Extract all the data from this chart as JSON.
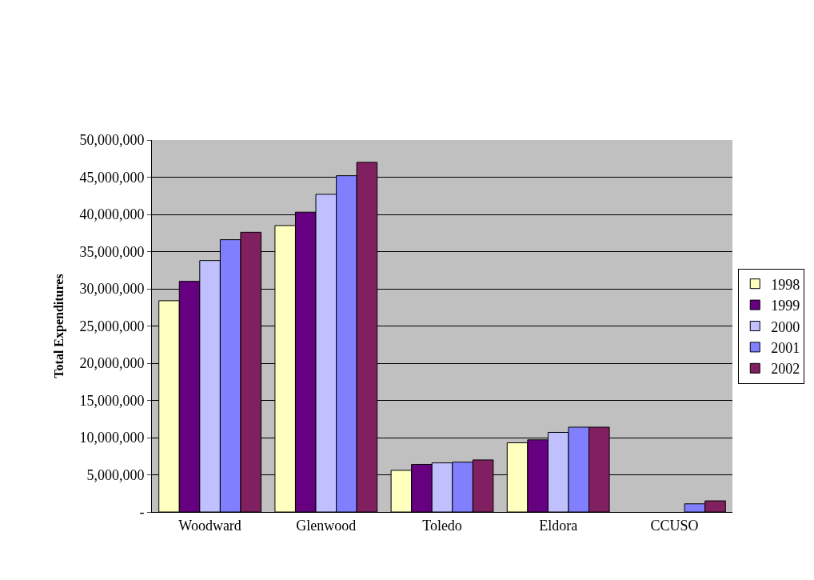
{
  "chart_data": {
    "type": "bar",
    "ylabel": "Total Expenditures",
    "categories": [
      "Woodward",
      "Glenwood",
      "Toledo",
      "Eldora",
      "CCUSO"
    ],
    "series": [
      {
        "name": "1998",
        "color": "#ffffc0",
        "values": [
          28400000,
          38500000,
          5600000,
          9300000,
          null
        ]
      },
      {
        "name": "1999",
        "color": "#660080",
        "values": [
          31000000,
          40300000,
          6400000,
          9700000,
          null
        ]
      },
      {
        "name": "2000",
        "color": "#c0c0ff",
        "values": [
          33800000,
          42700000,
          6600000,
          10700000,
          null
        ]
      },
      {
        "name": "2001",
        "color": "#8080ff",
        "values": [
          36600000,
          45200000,
          6700000,
          11400000,
          1100000
        ]
      },
      {
        "name": "2002",
        "color": "#802060",
        "values": [
          37600000,
          47000000,
          7000000,
          11400000,
          1500000
        ]
      }
    ],
    "ylim": [
      0,
      50000000
    ],
    "yticks": [
      {
        "value": 0,
        "label": "-"
      },
      {
        "value": 5000000,
        "label": "5,000,000"
      },
      {
        "value": 10000000,
        "label": "10,000,000"
      },
      {
        "value": 15000000,
        "label": "15,000,000"
      },
      {
        "value": 20000000,
        "label": "20,000,000"
      },
      {
        "value": 25000000,
        "label": "25,000,000"
      },
      {
        "value": 30000000,
        "label": "30,000,000"
      },
      {
        "value": 35000000,
        "label": "35,000,000"
      },
      {
        "value": 40000000,
        "label": "40,000,000"
      },
      {
        "value": 45000000,
        "label": "45,000,000"
      },
      {
        "value": 50000000,
        "label": "50,000,000"
      }
    ],
    "grid": "y",
    "legend": "right"
  }
}
